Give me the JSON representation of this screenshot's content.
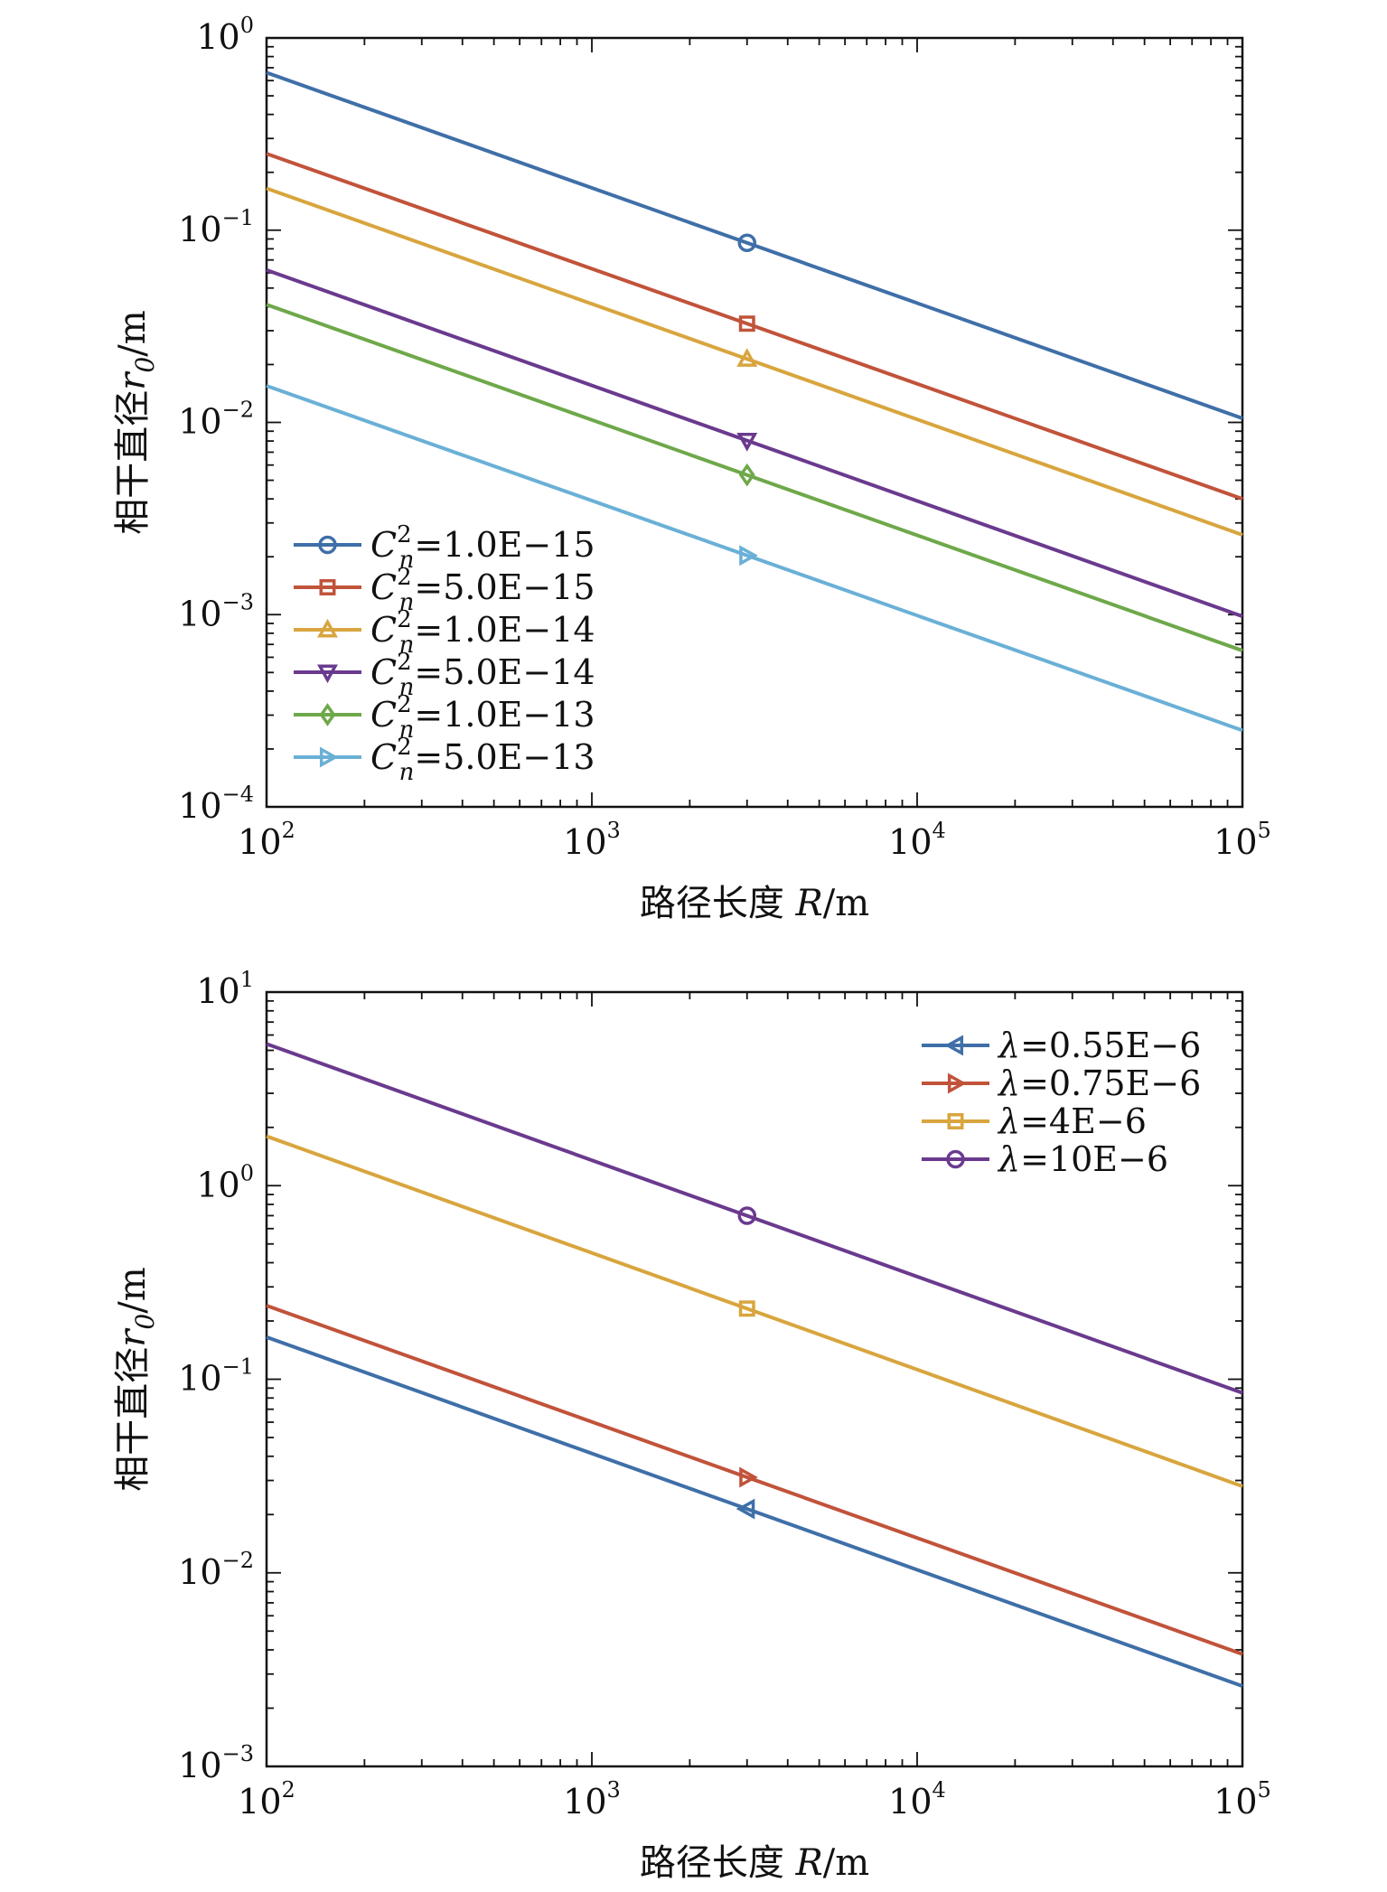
{
  "chart_data": [
    {
      "type": "line",
      "xscale": "log",
      "yscale": "log",
      "xlim": [
        100,
        100000
      ],
      "ylim": [
        0.0001,
        1
      ],
      "x_ticks": [
        {
          "value": 100,
          "base": "10",
          "exp": "2"
        },
        {
          "value": 1000,
          "base": "10",
          "exp": "3"
        },
        {
          "value": 10000,
          "base": "10",
          "exp": "4"
        },
        {
          "value": 100000,
          "base": "10",
          "exp": "5"
        }
      ],
      "y_ticks": [
        {
          "value": 1,
          "base": "10",
          "exp": "0"
        },
        {
          "value": 0.1,
          "base": "10",
          "exp": "−1"
        },
        {
          "value": 0.01,
          "base": "10",
          "exp": "−2"
        },
        {
          "value": 0.001,
          "base": "10",
          "exp": "−3"
        },
        {
          "value": 0.0001,
          "base": "10",
          "exp": "−4"
        }
      ],
      "xlabel": {
        "prefix": "路径长度 ",
        "italic": "R",
        "suffix": "/m"
      },
      "ylabel": {
        "prefix": "相干直径",
        "italic": "r",
        "sub": "0",
        "suffix": "/m"
      },
      "legend_position": "lower-left",
      "series": [
        {
          "label_pre": "C",
          "label_sup": "2",
          "label_sub": "n",
          "label_post": "=1.0E−15",
          "color": "#3f6fa8",
          "marker": "circle",
          "marker_x": 3000,
          "x": [
            100,
            100000
          ],
          "y": [
            0.66,
            0.0105
          ]
        },
        {
          "label_pre": "C",
          "label_sup": "2",
          "label_sub": "n",
          "label_post": "=5.0E−15",
          "color": "#c1533a",
          "marker": "square",
          "marker_x": 3000,
          "x": [
            100,
            100000
          ],
          "y": [
            0.25,
            0.004
          ]
        },
        {
          "label_pre": "C",
          "label_sup": "2",
          "label_sub": "n",
          "label_post": "=1.0E−14",
          "color": "#d8a53e",
          "marker": "triangle-up",
          "marker_x": 3000,
          "x": [
            100,
            100000
          ],
          "y": [
            0.165,
            0.0026
          ]
        },
        {
          "label_pre": "C",
          "label_sup": "2",
          "label_sub": "n",
          "label_post": "=5.0E−14",
          "color": "#6a3a8e",
          "marker": "triangle-down",
          "marker_x": 3000,
          "x": [
            100,
            100000
          ],
          "y": [
            0.062,
            0.00098
          ]
        },
        {
          "label_pre": "C",
          "label_sup": "2",
          "label_sub": "n",
          "label_post": "=1.0E−13",
          "color": "#6ea84a",
          "marker": "diamond",
          "marker_x": 3000,
          "x": [
            100,
            100000
          ],
          "y": [
            0.041,
            0.00065
          ]
        },
        {
          "label_pre": "C",
          "label_sup": "2",
          "label_sub": "n",
          "label_post": "=5.0E−13",
          "color": "#6ab0d6",
          "marker": "triangle-right",
          "marker_x": 3000,
          "x": [
            100,
            100000
          ],
          "y": [
            0.0155,
            0.00025
          ]
        }
      ]
    },
    {
      "type": "line",
      "xscale": "log",
      "yscale": "log",
      "xlim": [
        100,
        100000
      ],
      "ylim": [
        0.001,
        10
      ],
      "x_ticks": [
        {
          "value": 100,
          "base": "10",
          "exp": "2"
        },
        {
          "value": 1000,
          "base": "10",
          "exp": "3"
        },
        {
          "value": 10000,
          "base": "10",
          "exp": "4"
        },
        {
          "value": 100000,
          "base": "10",
          "exp": "5"
        }
      ],
      "y_ticks": [
        {
          "value": 10,
          "base": "10",
          "exp": "1"
        },
        {
          "value": 1,
          "base": "10",
          "exp": "0"
        },
        {
          "value": 0.1,
          "base": "10",
          "exp": "−1"
        },
        {
          "value": 0.01,
          "base": "10",
          "exp": "−2"
        },
        {
          "value": 0.001,
          "base": "10",
          "exp": "−3"
        }
      ],
      "xlabel": {
        "prefix": "路径长度 ",
        "italic": "R",
        "suffix": "/m"
      },
      "ylabel": {
        "prefix": "相干直径",
        "italic": "r",
        "sub": "0",
        "suffix": "/m"
      },
      "legend_position": "top-right",
      "series": [
        {
          "label_pre": "λ",
          "label_sup": "",
          "label_sub": "",
          "label_post": "=0.55E−6",
          "color": "#3f6fa8",
          "marker": "triangle-left",
          "marker_x": 3000,
          "x": [
            100,
            100000
          ],
          "y": [
            0.165,
            0.0026
          ]
        },
        {
          "label_pre": "λ",
          "label_sup": "",
          "label_sub": "",
          "label_post": "=0.75E−6",
          "color": "#c1533a",
          "marker": "triangle-right",
          "marker_x": 3000,
          "x": [
            100,
            100000
          ],
          "y": [
            0.24,
            0.0038
          ]
        },
        {
          "label_pre": "λ",
          "label_sup": "",
          "label_sub": "",
          "label_post": "=4E−6",
          "color": "#d8a53e",
          "marker": "square",
          "marker_x": 3000,
          "x": [
            100,
            100000
          ],
          "y": [
            1.8,
            0.028
          ]
        },
        {
          "label_pre": "λ",
          "label_sup": "",
          "label_sub": "",
          "label_post": "=10E−6",
          "color": "#6a3a8e",
          "marker": "circle",
          "marker_x": 3000,
          "x": [
            100,
            100000
          ],
          "y": [
            5.4,
            0.085
          ]
        }
      ]
    }
  ]
}
